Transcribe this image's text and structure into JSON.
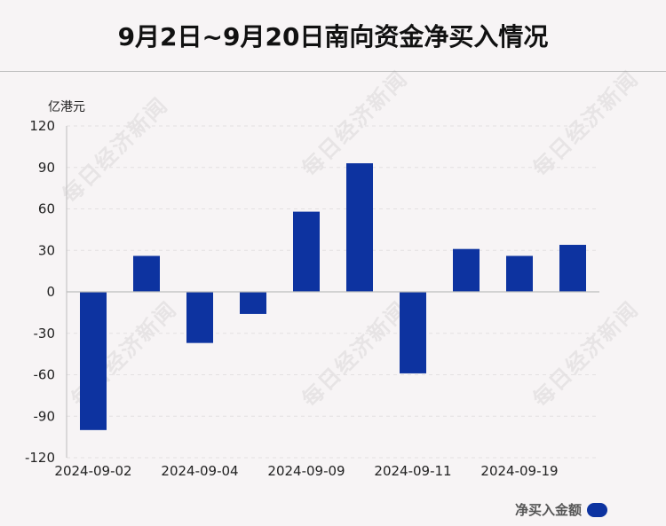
{
  "title": "9月2日~9月20日南向资金净买入情况",
  "unit_label": "亿港元",
  "legend_label": "净买入金额",
  "watermark_text": "每日经济新闻",
  "colors": {
    "bar": "#0d33a0",
    "axis": "#bdbdbd",
    "grid": "#e3e0e1"
  },
  "chart_data": {
    "type": "bar",
    "title": "9月2日~9月20日南向资金净买入情况",
    "ylabel": "亿港元",
    "ylim": [
      -120,
      120
    ],
    "yticks": [
      120,
      90,
      60,
      30,
      0,
      -30,
      -60,
      -90,
      -120
    ],
    "categories": [
      "2024-09-02",
      "",
      "2024-09-04",
      "",
      "2024-09-09",
      "",
      "2024-09-11",
      "",
      "2024-09-19",
      ""
    ],
    "series": [
      {
        "name": "净买入金额",
        "values": [
          -100,
          26,
          -37,
          -16,
          58,
          93,
          -59,
          31,
          26,
          34
        ]
      }
    ],
    "grid": true,
    "legend_position": "bottom-right"
  }
}
